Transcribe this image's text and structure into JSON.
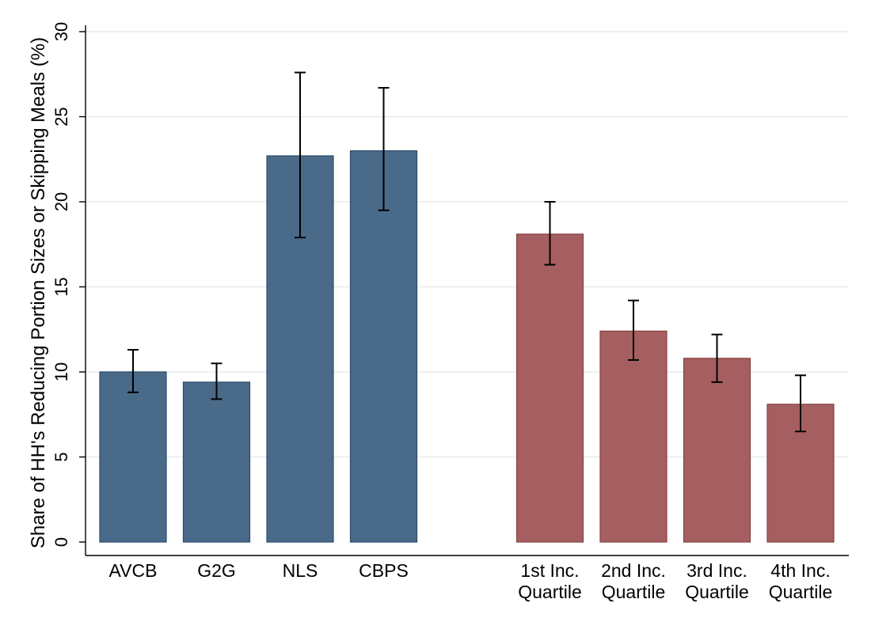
{
  "chart_data": {
    "type": "bar",
    "title": "",
    "xlabel": "",
    "ylabel": "Share of HH's Reducing Portion Sizes or Skipping Meals (%)",
    "ylim": [
      0,
      30
    ],
    "yticks": [
      0,
      5,
      10,
      15,
      20,
      25,
      30
    ],
    "grid": true,
    "error_bars": true,
    "groups": [
      {
        "color": "#4a6a8a",
        "bars": [
          {
            "label": [
              "AVCB"
            ],
            "value": 10.0,
            "ci_low": 8.8,
            "ci_high": 11.3
          },
          {
            "label": [
              "G2G"
            ],
            "value": 9.4,
            "ci_low": 8.4,
            "ci_high": 10.5
          },
          {
            "label": [
              "NLS"
            ],
            "value": 22.7,
            "ci_low": 17.9,
            "ci_high": 27.6
          },
          {
            "label": [
              "CBPS"
            ],
            "value": 23.0,
            "ci_low": 19.5,
            "ci_high": 26.7
          }
        ]
      },
      {
        "color": "#a65f60",
        "bars": [
          {
            "label": [
              "1st Inc.",
              "Quartile"
            ],
            "value": 18.1,
            "ci_low": 16.3,
            "ci_high": 20.0
          },
          {
            "label": [
              "2nd Inc.",
              "Quartile"
            ],
            "value": 12.4,
            "ci_low": 10.7,
            "ci_high": 14.2
          },
          {
            "label": [
              "3rd Inc.",
              "Quartile"
            ],
            "value": 10.8,
            "ci_low": 9.4,
            "ci_high": 12.2
          },
          {
            "label": [
              "4th Inc.",
              "Quartile"
            ],
            "value": 8.1,
            "ci_low": 6.5,
            "ci_high": 9.8
          }
        ]
      }
    ]
  }
}
